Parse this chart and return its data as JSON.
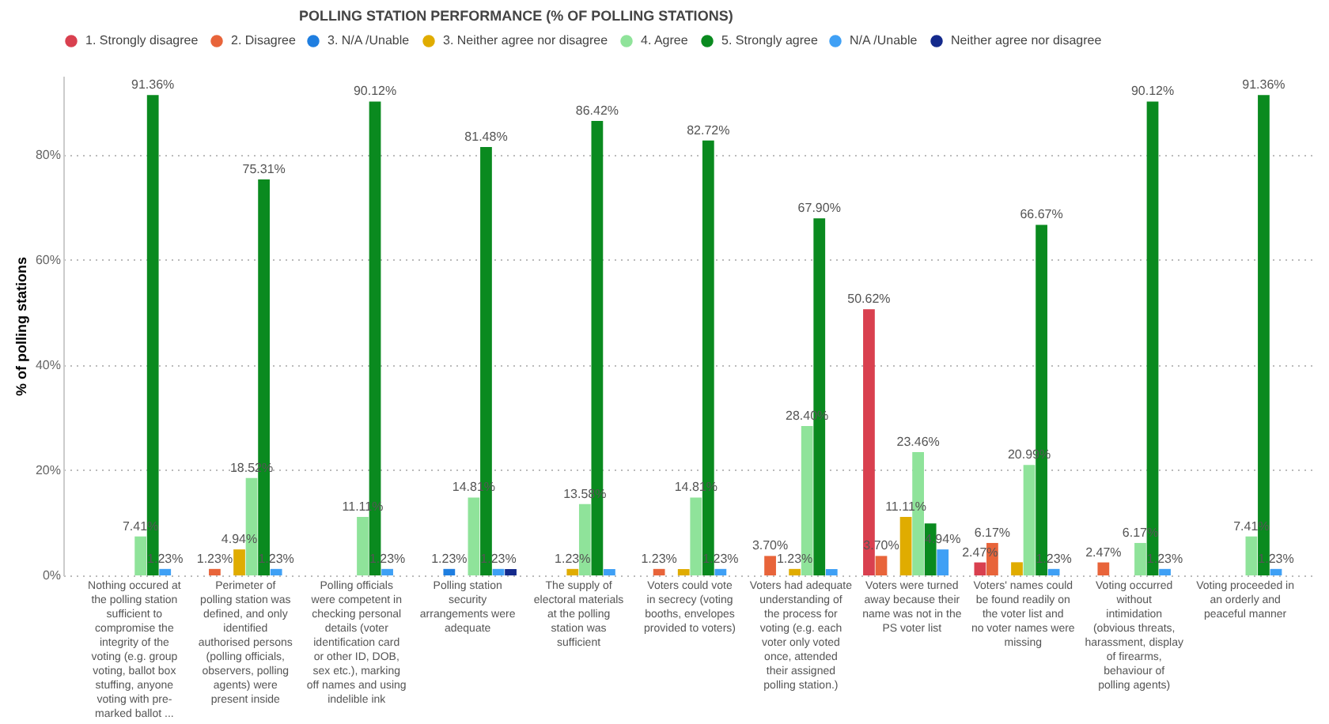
{
  "chart_data": {
    "type": "bar",
    "title": "POLLING STATION PERFORMANCE (% OF POLLING STATIONS)",
    "ylabel": "% of polling stations",
    "categories": [
      "Nothing occured at the polling station sufficient to compromise the integrity of the voting (e.g. group voting, ballot box stuffing, anyone voting with pre-marked ballot ...",
      "Perimeter of polling station was defined, and only identified authorised persons (polling officials, observers, polling agents) were present inside",
      "Polling officials were competent in checking personal details (voter identification card or other ID, DOB, sex etc.), marking off names and using indelible ink",
      "Polling station security arrangements were adequate",
      "The supply of electoral materials at the polling station was sufficient",
      "Voters could vote in secrecy (voting booths, envelopes provided to voters)",
      "Voters had adequate understanding of the process for voting (e.g. each voter only voted once, attended their assigned polling station.)",
      "Voters were turned away because their name was not in the PS voter list",
      "Voters' names could be found readily on the voter list and no voter names were missing",
      "Voting occurred without intimidation (obvious threats, harassment, display of firearms, behaviour of polling agents)",
      "Voting proceeded in an orderly and peaceful manner"
    ],
    "series": [
      {
        "name": "1. Strongly disagree",
        "color": "#d9404f",
        "values": [
          null,
          null,
          null,
          null,
          null,
          null,
          null,
          50.62,
          2.47,
          null,
          null
        ],
        "value_labels": [
          null,
          null,
          null,
          null,
          null,
          null,
          null,
          "50.62%",
          "2.47%",
          null,
          null
        ]
      },
      {
        "name": "2. Disagree",
        "color": "#e8643a",
        "values": [
          null,
          1.23,
          null,
          null,
          null,
          1.23,
          3.7,
          3.7,
          6.17,
          2.47,
          null
        ],
        "value_labels": [
          null,
          "1.23%",
          null,
          null,
          null,
          "1.23%",
          "3.70%",
          "3.70%",
          "6.17%",
          "2.47%",
          null
        ]
      },
      {
        "name": "3. N/A /Unable",
        "color": "#1f7ee0",
        "values": [
          null,
          null,
          null,
          1.23,
          null,
          null,
          null,
          null,
          null,
          null,
          null
        ],
        "value_labels": [
          null,
          null,
          null,
          "1.23%",
          null,
          null,
          null,
          null,
          null,
          null,
          null
        ]
      },
      {
        "name": "3. Neither agree nor disagree",
        "color": "#e0ac00",
        "values": [
          null,
          4.94,
          null,
          null,
          1.23,
          1.2,
          1.23,
          11.11,
          2.5,
          null,
          null
        ],
        "value_labels": [
          null,
          "4.94%",
          null,
          null,
          "1.23%",
          null,
          "1.23%",
          "11.11%",
          null,
          null,
          null
        ]
      },
      {
        "name": "4. Agree",
        "color": "#8fe39a",
        "values": [
          7.41,
          18.52,
          11.11,
          14.81,
          13.58,
          14.81,
          28.4,
          23.46,
          20.99,
          6.17,
          7.41
        ],
        "value_labels": [
          "7.41%",
          "18.52%",
          "11.11%",
          "14.81%",
          "13.58%",
          "14.81%",
          "28.40%",
          "23.46%",
          "20.99%",
          "6.17%",
          "7.41%"
        ]
      },
      {
        "name": "5. Strongly agree",
        "color": "#0a8a1f",
        "values": [
          91.36,
          75.31,
          90.12,
          81.48,
          86.42,
          82.72,
          67.9,
          9.9,
          66.67,
          90.12,
          91.36
        ],
        "value_labels": [
          "91.36%",
          "75.31%",
          "90.12%",
          "81.48%",
          "86.42%",
          "82.72%",
          "67.90%",
          null,
          "66.67%",
          "90.12%",
          "91.36%"
        ]
      },
      {
        "name": "N/A /Unable",
        "color": "#3fa0f5",
        "values": [
          1.23,
          1.23,
          1.23,
          1.23,
          1.2,
          1.23,
          1.2,
          4.94,
          1.23,
          1.23,
          1.23
        ],
        "value_labels": [
          "1.23%",
          "1.23%",
          "1.23%",
          "1.23%",
          null,
          "1.23%",
          null,
          "4.94%",
          "1.23%",
          "1.23%",
          "1.23%"
        ]
      },
      {
        "name": "Neither agree nor disagree",
        "color": "#142a8c",
        "values": [
          null,
          null,
          null,
          1.2,
          null,
          null,
          null,
          null,
          null,
          null,
          null
        ],
        "value_labels": [
          null,
          null,
          null,
          null,
          null,
          null,
          null,
          null,
          null,
          null,
          null
        ]
      }
    ],
    "ylim": [
      0,
      95
    ],
    "yticks": [
      {
        "value": 0,
        "label": "0%"
      },
      {
        "value": 20,
        "label": "20%"
      },
      {
        "value": 40,
        "label": "40%"
      },
      {
        "value": 60,
        "label": "60%"
      },
      {
        "value": 80,
        "label": "80%"
      }
    ],
    "grid": "y",
    "legend": "top"
  }
}
